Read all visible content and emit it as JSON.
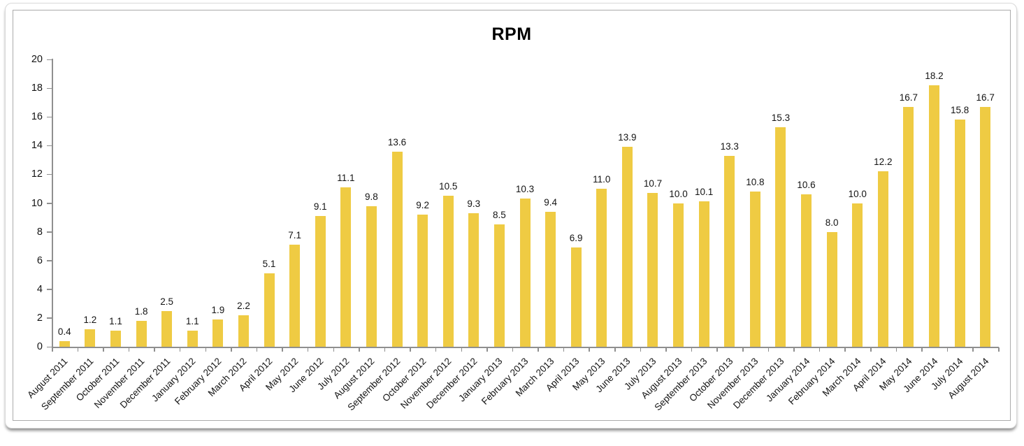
{
  "chart_data": {
    "type": "bar",
    "title": "RPM",
    "categories": [
      "August 2011",
      "September 2011",
      "October 2011",
      "November 2011",
      "December 2011",
      "January 2012",
      "February 2012",
      "March 2012",
      "April 2012",
      "May 2012",
      "June 2012",
      "July 2012",
      "August 2012",
      "September 2012",
      "October 2012",
      "November 2012",
      "December 2012",
      "January 2013",
      "February 2013",
      "March 2013",
      "April 2013",
      "May 2013",
      "June 2013",
      "July 2013",
      "August 2013",
      "September 2013",
      "October 2013",
      "November 2013",
      "December 2013",
      "January 2014",
      "February 2014",
      "March 2014",
      "April 2014",
      "May 2014",
      "June 2014",
      "July 2014",
      "August 2014"
    ],
    "values": [
      0.4,
      1.2,
      1.1,
      1.8,
      2.5,
      1.1,
      1.9,
      2.2,
      5.1,
      7.1,
      9.1,
      11.1,
      9.8,
      13.6,
      9.2,
      10.5,
      9.3,
      8.5,
      10.3,
      9.4,
      6.9,
      11.0,
      13.9,
      10.7,
      10.0,
      10.1,
      13.3,
      10.8,
      15.3,
      10.6,
      8.0,
      10.0,
      12.2,
      16.7,
      18.2,
      15.8,
      16.7
    ],
    "xlabel": "",
    "ylabel": "",
    "ylim": [
      0,
      20
    ],
    "ytick_step": 2,
    "grid": "off",
    "legend": "none",
    "bar_color": "#EFCB43",
    "axis_color": "#8f8f8f",
    "text_color": "#141414"
  }
}
